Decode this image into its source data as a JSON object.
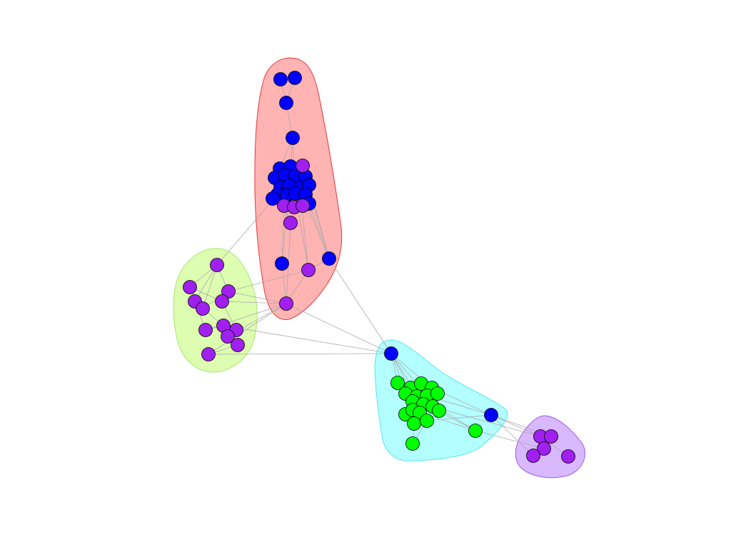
{
  "diagram": {
    "type": "network-graph-communities",
    "communities": [
      {
        "name": "community-red",
        "fill": "#ffb3b3",
        "stroke": "#e23b3b"
      },
      {
        "name": "community-lime",
        "fill": "#ddfdb0",
        "stroke": "#a7e872"
      },
      {
        "name": "community-cyan",
        "fill": "#b3ffff",
        "stroke": "#57e6ef"
      },
      {
        "name": "community-violet",
        "fill": "#d8b8ff",
        "stroke": "#a15be0"
      }
    ],
    "node_colors": {
      "blue": "#0000ff",
      "purple": "#a020f0",
      "green": "#00ff00"
    }
  }
}
